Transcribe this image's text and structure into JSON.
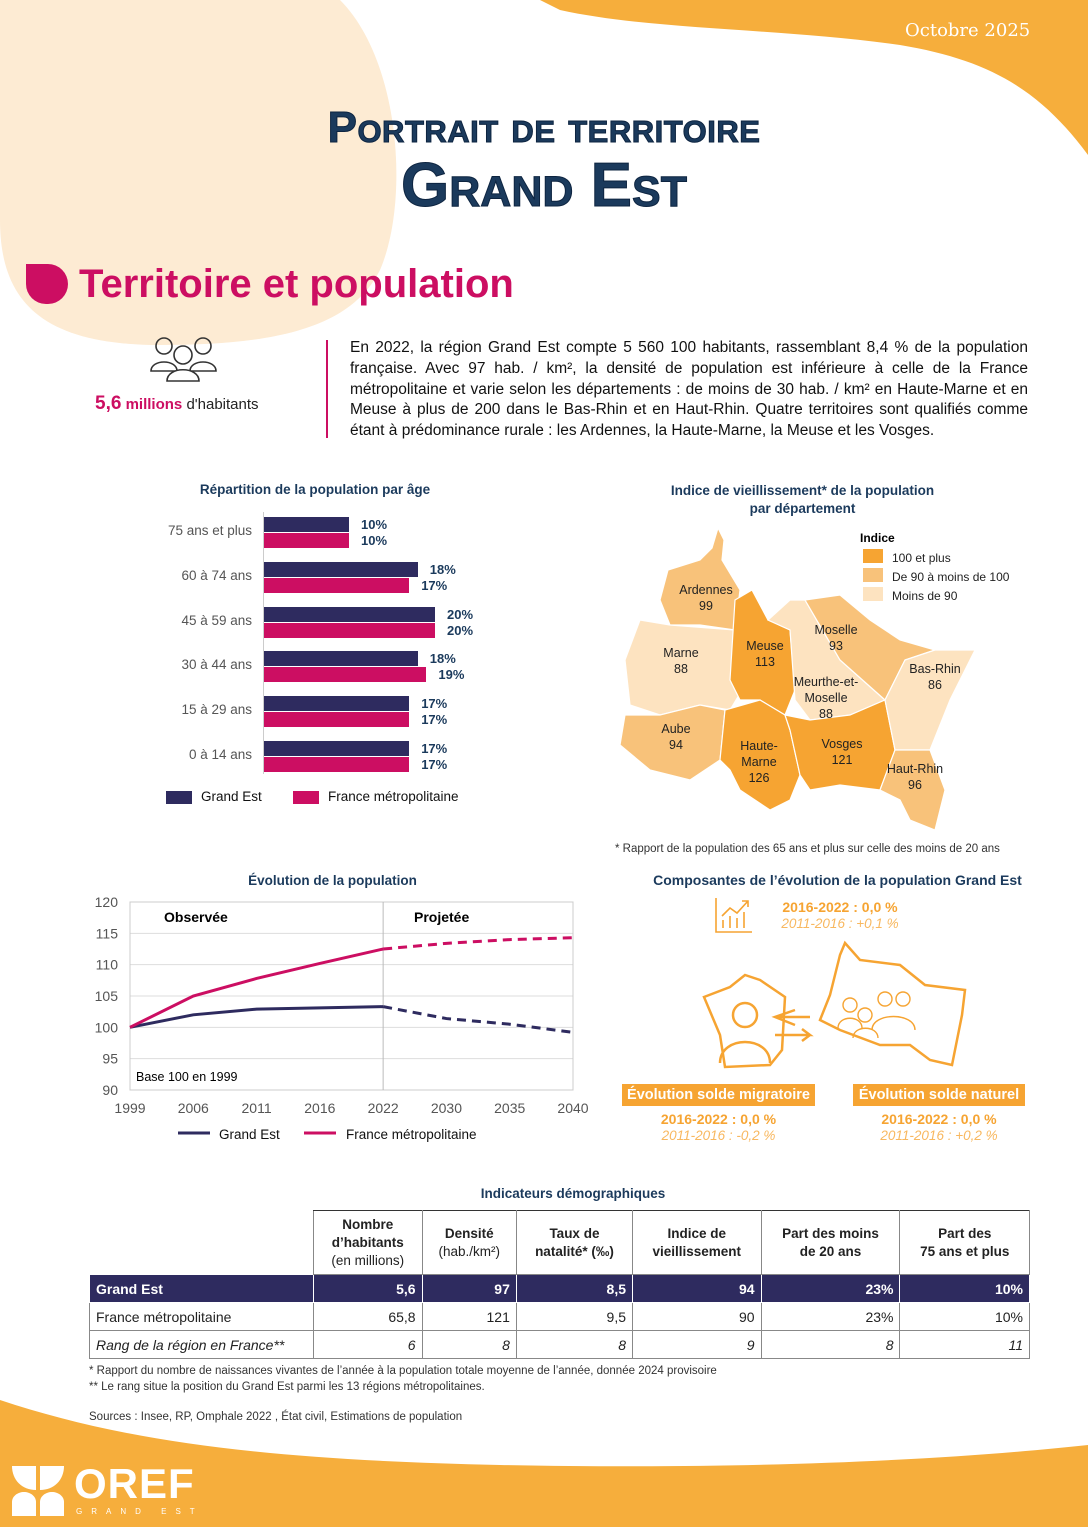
{
  "header": {
    "date": "Octobre 2025",
    "title_line1": "Portrait de territoire",
    "title_line2": "Grand Est"
  },
  "section": {
    "title": "Territoire et population"
  },
  "population": {
    "value": "5,6",
    "unit": "millions",
    "suffix": "d'habitants"
  },
  "intro_text": "En 2022, la région Grand Est compte 5 560 100 habitants, rassemblant 8,4 % de la population française. Avec 97 hab. / km², la densité de population est inférieure à celle de la France métropolitaine et varie selon les départements : de moins de 30 hab. / km² en Haute-Marne et en Meuse à plus de 200 dans le Bas-Rhin et en Haut-Rhin. Quatre territoires sont qualifiés comme étant à prédominance rurale : les Ardennes, la Haute-Marne, la Meuse et les Vosges.",
  "colors": {
    "grand_est": "#2e2b5f",
    "france": "#cc0e62",
    "accent": "#f6a432",
    "map_high": "#f6a432",
    "map_mid": "#f8c27a",
    "map_low": "#fde3c0"
  },
  "chart_data": [
    {
      "type": "bar",
      "orientation": "horizontal",
      "title": "Répartition de la population par âge",
      "categories": [
        "75 ans et plus",
        "60 à 74 ans",
        "45 à 59 ans",
        "30 à 44 ans",
        "15 à 29 ans",
        "0 à 14 ans"
      ],
      "series": [
        {
          "name": "Grand Est",
          "values": [
            10,
            18,
            20,
            18,
            17,
            17
          ]
        },
        {
          "name": "France métropolitaine",
          "values": [
            10,
            17,
            20,
            19,
            17,
            17
          ]
        }
      ],
      "unit": "%",
      "legend": "bottom"
    },
    {
      "type": "line",
      "title": "Évolution de la population",
      "categories": [
        "1999",
        "2006",
        "2011",
        "2016",
        "2022",
        "2030",
        "2035",
        "2040"
      ],
      "ylim": [
        90,
        120
      ],
      "yticks": [
        90,
        95,
        100,
        105,
        110,
        115,
        120
      ],
      "grid": true,
      "annotation": "Base 100 en 1999",
      "regions": [
        "Observée",
        "Projetée"
      ],
      "projection_from": "2022",
      "series": [
        {
          "name": "Grand Est",
          "values": [
            100,
            102,
            102.9,
            103.1,
            103.3,
            101.4,
            100.5,
            99.2
          ]
        },
        {
          "name": "France métropolitaine",
          "values": [
            100,
            105,
            107.8,
            110.2,
            112.5,
            113.4,
            114,
            114.3
          ]
        }
      ],
      "legend": "bottom"
    }
  ],
  "map": {
    "title": "Indice de vieillissement* de la population",
    "title2": "par département",
    "legend_title": "Indice",
    "legend": [
      "100 et plus",
      "De 90 à moins de 100",
      "Moins de 90"
    ],
    "departments": [
      {
        "name": "Ardennes",
        "value": "99"
      },
      {
        "name": "Marne",
        "value": "88"
      },
      {
        "name": "Meuse",
        "value": "113"
      },
      {
        "name": "Moselle",
        "value": "93"
      },
      {
        "name": "Meurthe-et-Moselle",
        "value": "88"
      },
      {
        "name": "Bas-Rhin",
        "value": "86"
      },
      {
        "name": "Aube",
        "value": "94"
      },
      {
        "name": "Haute-Marne",
        "value": "126"
      },
      {
        "name": "Vosges",
        "value": "121"
      },
      {
        "name": "Haut-Rhin",
        "value": "96"
      }
    ],
    "note": "* Rapport de la population des 65 ans et plus sur celle des moins de 20 ans"
  },
  "components": {
    "title": "Composantes de l’évolution de la population Grand Est",
    "total": {
      "recent": "2016-2022 : 0,0 %",
      "previous": "2011-2016 : +0,1 %"
    },
    "migratoire": {
      "label": "Évolution solde migratoire",
      "recent": "2016-2022 : 0,0 %",
      "previous": "2011-2016 : -0,2 %"
    },
    "naturel": {
      "label": "Évolution solde naturel",
      "recent": "2016-2022 : 0,0 %",
      "previous": "2011-2016 : +0,2 %"
    }
  },
  "table": {
    "title": "Indicateurs démographiques",
    "headers": [
      [
        "Nombre",
        "d’habitants",
        "(en millions)"
      ],
      [
        "Densité",
        "(hab./km²)"
      ],
      [
        "Taux de",
        "natalité* (‰)"
      ],
      [
        "Indice de",
        "vieillissement"
      ],
      [
        "Part des moins",
        "de 20 ans"
      ],
      [
        "Part des",
        "75 ans et plus"
      ]
    ],
    "rows": [
      {
        "label": "Grand Est",
        "values": [
          "5,6",
          "97",
          "8,5",
          "94",
          "23%",
          "10%"
        ]
      },
      {
        "label": "France métropolitaine",
        "values": [
          "65,8",
          "121",
          "9,5",
          "90",
          "23%",
          "10%"
        ]
      },
      {
        "label": "Rang de la région en France**",
        "values": [
          "6",
          "8",
          "8",
          "9",
          "8",
          "11"
        ]
      }
    ]
  },
  "footnotes": [
    "* Rapport du nombre de naissances vivantes de l’année à la population totale moyenne de l’année, donnée 2024 provisoire",
    "** Le rang situe la position du Grand Est parmi les 13 régions métropolitaines."
  ],
  "sources": "Sources : Insee, RP, Omphale 2022 , État civil, Estimations de population",
  "logo": {
    "name": "OREF",
    "sub": "GRAND EST"
  }
}
